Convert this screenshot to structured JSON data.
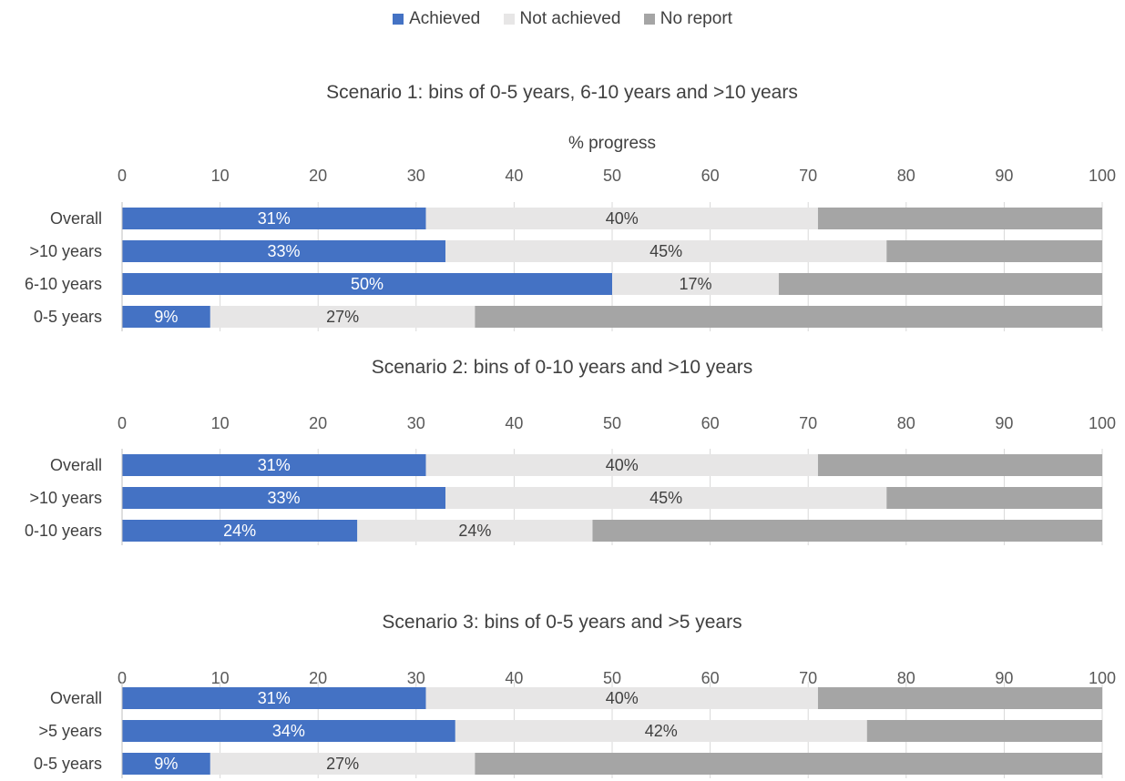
{
  "legend": {
    "items": [
      {
        "label": "Achieved",
        "color": "#4472C4"
      },
      {
        "label": "Not achieved",
        "color": "#E7E6E6"
      },
      {
        "label": "No report",
        "color": "#A5A5A5"
      }
    ]
  },
  "chart_data": [
    {
      "type": "bar",
      "orientation": "horizontal",
      "stacked": true,
      "title": "Scenario 1: bins of 0-5 years, 6-10 years and >10 years",
      "xlabel": "% progress",
      "xlim": [
        0,
        100
      ],
      "xticks": [
        0,
        10,
        20,
        30,
        40,
        50,
        60,
        70,
        80,
        90,
        100
      ],
      "categories": [
        "Overall",
        ">10 years",
        "6-10 years",
        "0-5 years"
      ],
      "series": [
        {
          "name": "Achieved",
          "values": [
            31,
            33,
            50,
            9
          ],
          "labels": [
            "31%",
            "33%",
            "50%",
            "9%"
          ],
          "color": "#4472C4"
        },
        {
          "name": "Not achieved",
          "values": [
            40,
            45,
            17,
            27
          ],
          "labels": [
            "40%",
            "45%",
            "17%",
            "27%"
          ],
          "color": "#E7E6E6"
        },
        {
          "name": "No report",
          "values": [
            29,
            22,
            33,
            64
          ],
          "labels": [
            "",
            "",
            "",
            ""
          ],
          "color": "#A5A5A5"
        }
      ]
    },
    {
      "type": "bar",
      "orientation": "horizontal",
      "stacked": true,
      "title": "Scenario 2: bins of 0-10 years and >10 years",
      "xlabel": "",
      "xlim": [
        0,
        100
      ],
      "xticks": [
        0,
        10,
        20,
        30,
        40,
        50,
        60,
        70,
        80,
        90,
        100
      ],
      "categories": [
        "Overall",
        ">10 years",
        "0-10 years"
      ],
      "series": [
        {
          "name": "Achieved",
          "values": [
            31,
            33,
            24
          ],
          "labels": [
            "31%",
            "33%",
            "24%"
          ],
          "color": "#4472C4"
        },
        {
          "name": "Not achieved",
          "values": [
            40,
            45,
            24
          ],
          "labels": [
            "40%",
            "45%",
            "24%"
          ],
          "color": "#E7E6E6"
        },
        {
          "name": "No report",
          "values": [
            29,
            22,
            52
          ],
          "labels": [
            "",
            "",
            ""
          ],
          "color": "#A5A5A5"
        }
      ]
    },
    {
      "type": "bar",
      "orientation": "horizontal",
      "stacked": true,
      "title": "Scenario 3: bins of 0-5 years and >5 years",
      "xlabel": "",
      "xlim": [
        0,
        100
      ],
      "xticks": [
        0,
        10,
        20,
        30,
        40,
        50,
        60,
        70,
        80,
        90,
        100
      ],
      "categories": [
        "Overall",
        ">5 years",
        "0-5 years"
      ],
      "series": [
        {
          "name": "Achieved",
          "values": [
            31,
            34,
            9
          ],
          "labels": [
            "31%",
            "34%",
            "9%"
          ],
          "color": "#4472C4"
        },
        {
          "name": "Not achieved",
          "values": [
            40,
            42,
            27
          ],
          "labels": [
            "40%",
            "42%",
            "27%"
          ],
          "color": "#E7E6E6"
        },
        {
          "name": "No report",
          "values": [
            29,
            24,
            64
          ],
          "labels": [
            "",
            "",
            ""
          ],
          "color": "#A5A5A5"
        }
      ]
    }
  ]
}
